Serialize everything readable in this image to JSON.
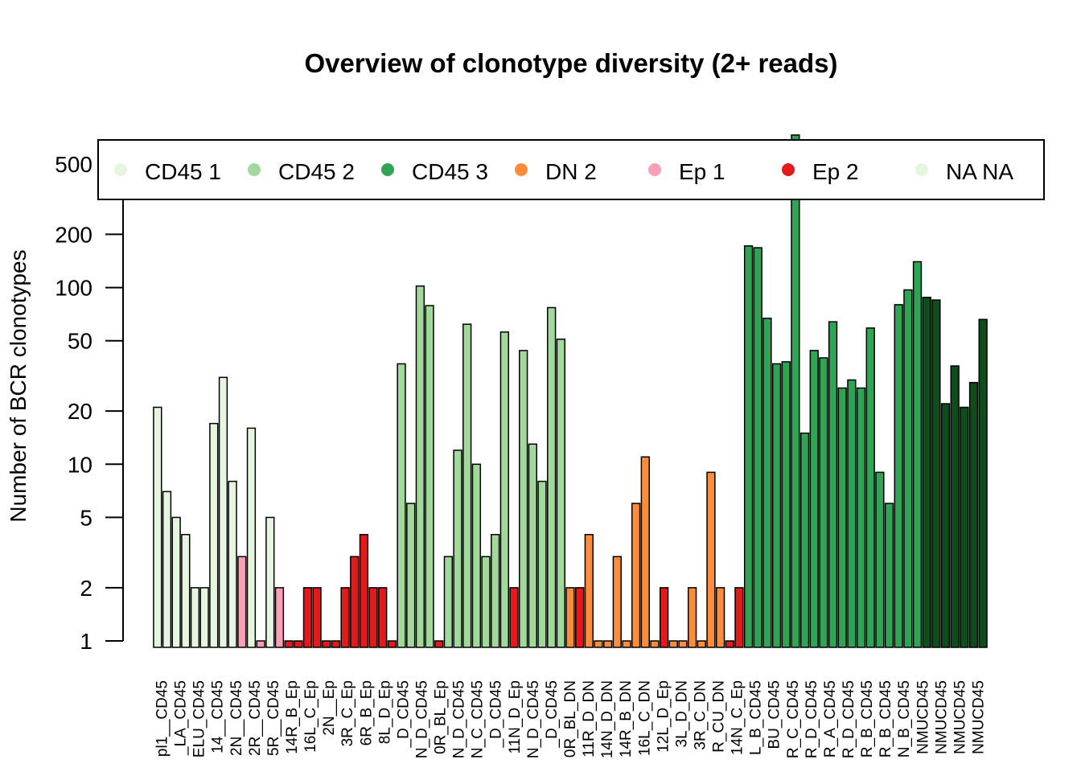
{
  "chart_data": {
    "type": "bar",
    "title": "Overview of clonotype diversity (2+ reads)",
    "xlabel": "",
    "ylabel": "Number of BCR clonotypes",
    "yscale": "log",
    "ylim": [
      0.9,
      800
    ],
    "yticks": [
      1,
      2,
      5,
      10,
      20,
      50,
      100,
      200,
      500
    ],
    "legend_position": "top",
    "legend": [
      {
        "label": "CD45 1",
        "color": "#e5f5e0"
      },
      {
        "label": "CD45 2",
        "color": "#a1d99b"
      },
      {
        "label": "CD45 3",
        "color": "#31a354"
      },
      {
        "label": "DN 2",
        "color": "#fd8d3c"
      },
      {
        "label": "Ep 1",
        "color": "#fa9fb5"
      },
      {
        "label": "Ep 2",
        "color": "#e31a1c"
      },
      {
        "label": "NA NA",
        "color": "#e5f5e0"
      }
    ],
    "categories": [
      "pl1__CD45",
      "_LA_CD45",
      "ELU_CD45",
      "14__CD45",
      "2N__CD45",
      "2R__CD45",
      "5R__CD45",
      "14R_B_Ep",
      "16L_C_Ep",
      "2N__Ep",
      "3R_C_Ep",
      "6R_B_Ep",
      "8L_D_Ep",
      "_D_CD45",
      "N_D_CD45",
      "0R_BL_Ep",
      "N_D_CD45",
      "N_C_CD45",
      "_D_CD45",
      "11N_D_Ep",
      "N_D_CD45",
      "_D_CD45",
      "0R_BL_DN",
      "11R_D_DN",
      "14N_D_DN",
      "14R_B_DN",
      "16L_C_DN",
      "12L_D_Ep",
      "3L_D_DN",
      "3R_C_DN",
      "R_CU_DN",
      "14N_C_Ep",
      "L_B_CD45",
      "BU_CD45",
      "R_C_CD45",
      "R_D_CD45",
      "R_A_CD45",
      "R_D_CD45",
      "R_B_CD45",
      "R_B_CD45",
      "N_B_CD45",
      "NMUCD45",
      "NMUCD45",
      "NMUCD45",
      "NMUCD45"
    ],
    "bars": [
      {
        "v": 21,
        "c": "#e5f5e0"
      },
      {
        "v": 7,
        "c": "#e5f5e0"
      },
      {
        "v": 5,
        "c": "#e5f5e0"
      },
      {
        "v": 4,
        "c": "#e5f5e0"
      },
      {
        "v": 2,
        "c": "#e5f5e0"
      },
      {
        "v": 2,
        "c": "#e5f5e0"
      },
      {
        "v": 17,
        "c": "#e5f5e0"
      },
      {
        "v": 31,
        "c": "#e5f5e0"
      },
      {
        "v": 8,
        "c": "#e5f5e0"
      },
      {
        "v": 3,
        "c": "#fa9fb5"
      },
      {
        "v": 16,
        "c": "#e5f5e0"
      },
      {
        "v": 1,
        "c": "#fa9fb5"
      },
      {
        "v": 5,
        "c": "#e5f5e0"
      },
      {
        "v": 2,
        "c": "#fa9fb5"
      },
      {
        "v": 1,
        "c": "#e31a1c"
      },
      {
        "v": 1,
        "c": "#e31a1c"
      },
      {
        "v": 2,
        "c": "#e31a1c"
      },
      {
        "v": 2,
        "c": "#e31a1c"
      },
      {
        "v": 1,
        "c": "#e31a1c"
      },
      {
        "v": 1,
        "c": "#e31a1c"
      },
      {
        "v": 2,
        "c": "#e31a1c"
      },
      {
        "v": 3,
        "c": "#e31a1c"
      },
      {
        "v": 4,
        "c": "#e31a1c"
      },
      {
        "v": 2,
        "c": "#e31a1c"
      },
      {
        "v": 2,
        "c": "#e31a1c"
      },
      {
        "v": 1,
        "c": "#e31a1c"
      },
      {
        "v": 37,
        "c": "#a1d99b"
      },
      {
        "v": 6,
        "c": "#a1d99b"
      },
      {
        "v": 102,
        "c": "#a1d99b"
      },
      {
        "v": 79,
        "c": "#a1d99b"
      },
      {
        "v": 1,
        "c": "#e31a1c"
      },
      {
        "v": 3,
        "c": "#a1d99b"
      },
      {
        "v": 12,
        "c": "#a1d99b"
      },
      {
        "v": 62,
        "c": "#a1d99b"
      },
      {
        "v": 10,
        "c": "#a1d99b"
      },
      {
        "v": 3,
        "c": "#a1d99b"
      },
      {
        "v": 4,
        "c": "#a1d99b"
      },
      {
        "v": 56,
        "c": "#a1d99b"
      },
      {
        "v": 2,
        "c": "#e31a1c"
      },
      {
        "v": 44,
        "c": "#a1d99b"
      },
      {
        "v": 13,
        "c": "#a1d99b"
      },
      {
        "v": 8,
        "c": "#a1d99b"
      },
      {
        "v": 77,
        "c": "#a1d99b"
      },
      {
        "v": 51,
        "c": "#a1d99b"
      },
      {
        "v": 2,
        "c": "#fd8d3c"
      },
      {
        "v": 2,
        "c": "#e31a1c"
      },
      {
        "v": 4,
        "c": "#fd8d3c"
      },
      {
        "v": 1,
        "c": "#fd8d3c"
      },
      {
        "v": 1,
        "c": "#fd8d3c"
      },
      {
        "v": 3,
        "c": "#fd8d3c"
      },
      {
        "v": 1,
        "c": "#fd8d3c"
      },
      {
        "v": 6,
        "c": "#fd8d3c"
      },
      {
        "v": 11,
        "c": "#fd8d3c"
      },
      {
        "v": 1,
        "c": "#fd8d3c"
      },
      {
        "v": 2,
        "c": "#e31a1c"
      },
      {
        "v": 1,
        "c": "#fd8d3c"
      },
      {
        "v": 1,
        "c": "#fd8d3c"
      },
      {
        "v": 2,
        "c": "#fd8d3c"
      },
      {
        "v": 1,
        "c": "#fd8d3c"
      },
      {
        "v": 9,
        "c": "#fd8d3c"
      },
      {
        "v": 2,
        "c": "#fd8d3c"
      },
      {
        "v": 1,
        "c": "#e31a1c"
      },
      {
        "v": 2,
        "c": "#e31a1c"
      },
      {
        "v": 172,
        "c": "#31a354"
      },
      {
        "v": 168,
        "c": "#31a354"
      },
      {
        "v": 67,
        "c": "#31a354"
      },
      {
        "v": 37,
        "c": "#31a354"
      },
      {
        "v": 38,
        "c": "#31a354"
      },
      {
        "v": 730,
        "c": "#31a354"
      },
      {
        "v": 15,
        "c": "#31a354"
      },
      {
        "v": 44,
        "c": "#31a354"
      },
      {
        "v": 40,
        "c": "#31a354"
      },
      {
        "v": 64,
        "c": "#31a354"
      },
      {
        "v": 27,
        "c": "#31a354"
      },
      {
        "v": 30,
        "c": "#31a354"
      },
      {
        "v": 27,
        "c": "#31a354"
      },
      {
        "v": 59,
        "c": "#31a354"
      },
      {
        "v": 9,
        "c": "#31a354"
      },
      {
        "v": 6,
        "c": "#31a354"
      },
      {
        "v": 80,
        "c": "#31a354"
      },
      {
        "v": 97,
        "c": "#31a354"
      },
      {
        "v": 140,
        "c": "#31a354"
      },
      {
        "v": 88,
        "c": "#0f4d1c"
      },
      {
        "v": 85,
        "c": "#0f4d1c"
      },
      {
        "v": 22,
        "c": "#0f4d1c"
      },
      {
        "v": 36,
        "c": "#0f4d1c"
      },
      {
        "v": 21,
        "c": "#0f4d1c"
      },
      {
        "v": 29,
        "c": "#0f4d1c"
      },
      {
        "v": 66,
        "c": "#0f4d1c"
      }
    ]
  }
}
